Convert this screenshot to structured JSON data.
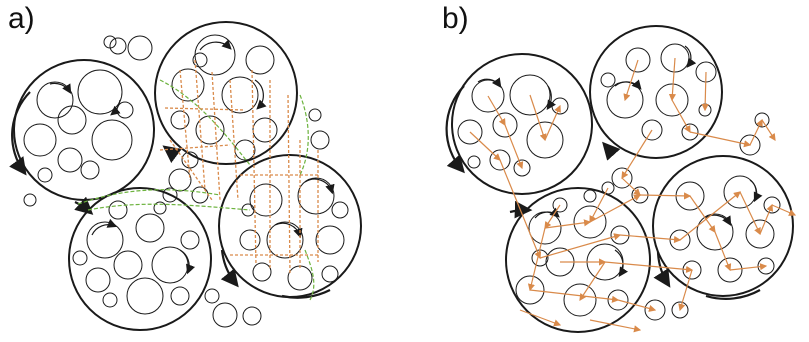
{
  "panels": [
    {
      "label": "a)",
      "variant": "green-orange-dashed-links"
    },
    {
      "label": "b)",
      "variant": "orange-arrow-network"
    }
  ],
  "colors": {
    "outline": "#1a1a1a",
    "green": "#6db33f",
    "orange": "#d98a4a",
    "background": "#ffffff"
  },
  "icons": [
    "rotation-arrow-icon"
  ]
}
